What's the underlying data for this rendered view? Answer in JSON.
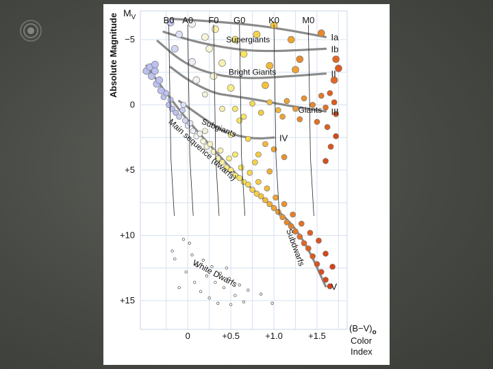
{
  "chart_data": {
    "type": "scatter",
    "title": "",
    "ylabel": "Absolute Magnitude",
    "ylabel_symbol": "M",
    "ylabel_subscript": "V",
    "xlabel_symbol": "(B−V)",
    "xlabel_subscript": "o",
    "xlabel_line1": "Color",
    "xlabel_line2": "Index",
    "xlim": [
      -0.55,
      1.85
    ],
    "ylim": [
      -7.2,
      17.2
    ],
    "y_inverted": true,
    "grid": true,
    "x_ticks": [
      {
        "value": 0,
        "label": "0"
      },
      {
        "value": 0.5,
        "label": "+0.5"
      },
      {
        "value": 1.0,
        "label": "+1.0"
      },
      {
        "value": 1.5,
        "label": "+1.5"
      }
    ],
    "y_ticks": [
      {
        "value": -5,
        "label": "−5"
      },
      {
        "value": 0,
        "label": "0"
      },
      {
        "value": 5,
        "label": "+5"
      },
      {
        "value": 10,
        "label": "+10"
      },
      {
        "value": 15,
        "label": "+15"
      }
    ],
    "spectral_types": [
      {
        "label": "B0",
        "x": -0.22
      },
      {
        "label": "A0",
        "x": 0.0
      },
      {
        "label": "F0",
        "x": 0.3
      },
      {
        "label": "G0",
        "x": 0.6
      },
      {
        "label": "K0",
        "x": 1.0
      },
      {
        "label": "M0",
        "x": 1.4
      }
    ],
    "luminosity_classes": [
      {
        "name": "Ia",
        "label": "Ia",
        "x": [
          -0.2,
          0.3,
          0.8,
          1.2,
          1.6
        ],
        "y": [
          -6.6,
          -6.4,
          -6.1,
          -5.7,
          -5.2
        ]
      },
      {
        "name": "Ib",
        "label": "Ib",
        "x": [
          -0.28,
          0.1,
          0.6,
          1.0,
          1.6
        ],
        "y": [
          -5.6,
          -4.8,
          -4.2,
          -4.1,
          -4.3
        ]
      },
      {
        "name": "II",
        "label": "II",
        "x": [
          -0.35,
          -0.05,
          0.3,
          0.7,
          1.2,
          1.6
        ],
        "y": [
          -4.9,
          -3.2,
          -2.3,
          -2.0,
          -2.2,
          -2.4
        ]
      },
      {
        "name": "III",
        "label": "III",
        "x": [
          -0.2,
          0.0,
          0.3,
          0.5,
          0.8,
          1.2,
          1.6
        ],
        "y": [
          -2.9,
          -1.9,
          -0.9,
          -0.7,
          -0.4,
          0.1,
          0.5
        ]
      },
      {
        "name": "IV",
        "label": "IV",
        "x": [
          -0.1,
          0.2,
          0.4,
          0.6,
          0.8,
          1.0
        ],
        "y": [
          -0.3,
          1.1,
          2.0,
          2.4,
          2.6,
          2.5
        ]
      },
      {
        "name": "V",
        "label": "V",
        "x": [
          -0.48,
          -0.25,
          0.0,
          0.3,
          0.6,
          0.9,
          1.2,
          1.4,
          1.6
        ],
        "y": [
          -3.0,
          -0.9,
          1.2,
          3.4,
          5.6,
          7.3,
          9.0,
          11.0,
          13.9
        ]
      }
    ],
    "region_labels": [
      {
        "text": "Supergiants",
        "x": 0.7,
        "y": -4.8,
        "rotate": 0
      },
      {
        "text": "Bright Giants",
        "x": 0.75,
        "y": -2.3,
        "rotate": 0
      },
      {
        "text": "Giants",
        "x": 1.42,
        "y": 0.6,
        "rotate": 0
      },
      {
        "text": "Subgiants",
        "x": 0.35,
        "y": 1.95,
        "rotate": 22
      },
      {
        "text": "Main sequence (dwarfs)",
        "x": 0.15,
        "y": 3.6,
        "rotate": 42
      },
      {
        "text": "Subdwarfs",
        "x": 1.22,
        "y": 11.0,
        "rotate": 70
      },
      {
        "text": "White Dwarfs",
        "x": 0.3,
        "y": 13.1,
        "rotate": 28
      }
    ],
    "stars": [
      {
        "x": -0.48,
        "y": -2.6,
        "color": "#bcc1f2"
      },
      {
        "x": -0.44,
        "y": -2.9,
        "color": "#bcc1f2"
      },
      {
        "x": -0.42,
        "y": -2.2,
        "color": "#bcc1f2"
      },
      {
        "x": -0.38,
        "y": -2.6,
        "color": "#bcc1f2"
      },
      {
        "x": -0.36,
        "y": -1.6,
        "color": "#bcc1f2"
      },
      {
        "x": -0.33,
        "y": -1.9,
        "color": "#bcc1f2"
      },
      {
        "x": -0.31,
        "y": -1.1,
        "color": "#bcc1f2"
      },
      {
        "x": -0.28,
        "y": -0.6,
        "color": "#bcc1f2"
      },
      {
        "x": -0.25,
        "y": -0.9,
        "color": "#bcc1f2"
      },
      {
        "x": -0.22,
        "y": 0.0,
        "color": "#bcc1f2"
      },
      {
        "x": -0.2,
        "y": -0.4,
        "color": "#bcc1f2"
      },
      {
        "x": -0.18,
        "y": 0.3,
        "color": "#bcc1f2"
      },
      {
        "x": -0.14,
        "y": 0.6,
        "color": "#bcc1f2"
      },
      {
        "x": -0.1,
        "y": 0.9,
        "color": "#c8ccf2"
      },
      {
        "x": -0.06,
        "y": 0.4,
        "color": "#c8ccf2"
      },
      {
        "x": -0.03,
        "y": 1.2,
        "color": "#d2d6f5"
      },
      {
        "x": 0.0,
        "y": 1.6,
        "color": "#e2e4f8"
      },
      {
        "x": 0.03,
        "y": 1.4,
        "color": "#e2e4f8"
      },
      {
        "x": 0.06,
        "y": 2.0,
        "color": "#eceef8"
      },
      {
        "x": 0.1,
        "y": 2.4,
        "color": "#f2f2ee"
      },
      {
        "x": 0.14,
        "y": 2.2,
        "color": "#f2f2ee"
      },
      {
        "x": 0.18,
        "y": 2.8,
        "color": "#f7f5d8"
      },
      {
        "x": 0.22,
        "y": 3.2,
        "color": "#f7f5d8"
      },
      {
        "x": 0.26,
        "y": 3.0,
        "color": "#f8f3c4"
      },
      {
        "x": 0.3,
        "y": 3.6,
        "color": "#f8f3c4"
      },
      {
        "x": 0.35,
        "y": 4.1,
        "color": "#f8f0b0"
      },
      {
        "x": 0.4,
        "y": 4.4,
        "color": "#f8ef9c"
      },
      {
        "x": 0.45,
        "y": 4.8,
        "color": "#f8ec8a"
      },
      {
        "x": 0.5,
        "y": 5.0,
        "color": "#f8ea7c"
      },
      {
        "x": 0.55,
        "y": 5.4,
        "color": "#f8e86e"
      },
      {
        "x": 0.6,
        "y": 5.6,
        "color": "#f8e460"
      },
      {
        "x": 0.65,
        "y": 5.9,
        "color": "#f8e060"
      },
      {
        "x": 0.7,
        "y": 6.1,
        "color": "#f6d850"
      },
      {
        "x": 0.75,
        "y": 6.5,
        "color": "#f6d24a"
      },
      {
        "x": 0.8,
        "y": 6.8,
        "color": "#f6cc44"
      },
      {
        "x": 0.85,
        "y": 7.0,
        "color": "#f4c23e"
      },
      {
        "x": 0.9,
        "y": 7.3,
        "color": "#f2b83a"
      },
      {
        "x": 0.95,
        "y": 7.6,
        "color": "#f0ae36"
      },
      {
        "x": 1.0,
        "y": 7.9,
        "color": "#eea232"
      },
      {
        "x": 1.05,
        "y": 8.2,
        "color": "#ec9a30"
      },
      {
        "x": 1.1,
        "y": 8.6,
        "color": "#ea922e"
      },
      {
        "x": 1.15,
        "y": 9.0,
        "color": "#e8882c"
      },
      {
        "x": 1.2,
        "y": 9.3,
        "color": "#e6802a"
      },
      {
        "x": 1.25,
        "y": 9.7,
        "color": "#e47828"
      },
      {
        "x": 1.3,
        "y": 10.1,
        "color": "#e27026"
      },
      {
        "x": 1.35,
        "y": 10.6,
        "color": "#e06824"
      },
      {
        "x": 1.4,
        "y": 11.0,
        "color": "#de6022"
      },
      {
        "x": 1.45,
        "y": 11.6,
        "color": "#dc5a20"
      },
      {
        "x": 1.5,
        "y": 12.2,
        "color": "#da541e"
      },
      {
        "x": 1.55,
        "y": 12.8,
        "color": "#d84e1c"
      },
      {
        "x": 1.6,
        "y": 13.4,
        "color": "#d6481a"
      },
      {
        "x": 1.65,
        "y": 13.9,
        "color": "#d44218"
      },
      {
        "x": 0.2,
        "y": 2.0,
        "color": "#f5f2dc"
      },
      {
        "x": 0.38,
        "y": 3.5,
        "color": "#f8f0b0"
      },
      {
        "x": 0.48,
        "y": 4.1,
        "color": "#f8ec8a"
      },
      {
        "x": 0.62,
        "y": 4.8,
        "color": "#f8e460"
      },
      {
        "x": 0.72,
        "y": 5.2,
        "color": "#f6d850"
      },
      {
        "x": 0.82,
        "y": 5.9,
        "color": "#f6cc44"
      },
      {
        "x": 0.92,
        "y": 6.4,
        "color": "#f2b83a"
      },
      {
        "x": 1.02,
        "y": 7.1,
        "color": "#eea232"
      },
      {
        "x": 1.12,
        "y": 7.6,
        "color": "#ea922e"
      },
      {
        "x": 1.22,
        "y": 8.4,
        "color": "#e6802a"
      },
      {
        "x": 1.32,
        "y": 9.1,
        "color": "#e27026"
      },
      {
        "x": 1.42,
        "y": 9.8,
        "color": "#de6022"
      },
      {
        "x": 1.52,
        "y": 10.4,
        "color": "#da541e"
      },
      {
        "x": 1.6,
        "y": 11.4,
        "color": "#d6481a"
      },
      {
        "x": 1.68,
        "y": 12.4,
        "color": "#d44218"
      },
      {
        "x": 0.55,
        "y": 3.8,
        "color": "#f8e86e"
      },
      {
        "x": 0.78,
        "y": 4.4,
        "color": "#f6d24a"
      },
      {
        "x": 0.95,
        "y": 5.1,
        "color": "#f0ae36"
      },
      {
        "x": -0.2,
        "y": -6.3,
        "color": "#c8ccf2"
      },
      {
        "x": -0.1,
        "y": -5.4,
        "color": "#dde0f6"
      },
      {
        "x": 0.05,
        "y": -6.2,
        "color": "#f2f2ee"
      },
      {
        "x": 0.2,
        "y": -5.2,
        "color": "#f7f5d8"
      },
      {
        "x": 0.32,
        "y": -5.8,
        "color": "#f8f0b0"
      },
      {
        "x": 0.55,
        "y": -5.0,
        "color": "#f8e86e"
      },
      {
        "x": 0.8,
        "y": -5.4,
        "color": "#f6d24a"
      },
      {
        "x": 1.0,
        "y": -6.1,
        "color": "#f4c23e"
      },
      {
        "x": 1.2,
        "y": -5.0,
        "color": "#eea232"
      },
      {
        "x": 1.55,
        "y": -5.5,
        "color": "#e8882c"
      },
      {
        "x": -0.15,
        "y": -4.3,
        "color": "#d2d6f5"
      },
      {
        "x": 0.05,
        "y": -3.3,
        "color": "#eceef8"
      },
      {
        "x": 0.25,
        "y": -4.3,
        "color": "#f7f5d8"
      },
      {
        "x": 0.4,
        "y": -3.2,
        "color": "#f8f0b0"
      },
      {
        "x": 0.65,
        "y": -3.9,
        "color": "#f8e460"
      },
      {
        "x": 0.95,
        "y": -3.0,
        "color": "#f2b83a"
      },
      {
        "x": 1.3,
        "y": -3.5,
        "color": "#e8882c"
      },
      {
        "x": 1.72,
        "y": -3.5,
        "color": "#e06824"
      },
      {
        "x": 1.75,
        "y": -2.8,
        "color": "#de5a20"
      },
      {
        "x": 1.7,
        "y": -1.9,
        "color": "#e06824"
      },
      {
        "x": 0.1,
        "y": -1.9,
        "color": "#f2f2ee"
      },
      {
        "x": 0.3,
        "y": -2.2,
        "color": "#f7f5d8"
      },
      {
        "x": 0.5,
        "y": -1.3,
        "color": "#f8ec8a"
      },
      {
        "x": 0.9,
        "y": -1.5,
        "color": "#f4c23e"
      },
      {
        "x": 1.25,
        "y": -2.7,
        "color": "#eea232"
      },
      {
        "x": 0.2,
        "y": -0.8,
        "color": "#f5f2dc"
      },
      {
        "x": 0.55,
        "y": 0.3,
        "color": "#f8e86e"
      },
      {
        "x": 0.65,
        "y": 0.9,
        "color": "#f8e460"
      },
      {
        "x": 0.75,
        "y": -0.1,
        "color": "#f6d850"
      },
      {
        "x": 0.85,
        "y": 0.6,
        "color": "#f6cc44"
      },
      {
        "x": 0.95,
        "y": -0.2,
        "color": "#f4c23e"
      },
      {
        "x": 1.05,
        "y": 0.4,
        "color": "#f2b83a"
      },
      {
        "x": 1.15,
        "y": -0.3,
        "color": "#eea232"
      },
      {
        "x": 1.25,
        "y": 0.3,
        "color": "#ec9a30"
      },
      {
        "x": 1.35,
        "y": -0.5,
        "color": "#ea922e"
      },
      {
        "x": 1.45,
        "y": 0.0,
        "color": "#e8882c"
      },
      {
        "x": 1.55,
        "y": -0.7,
        "color": "#e47828"
      },
      {
        "x": 1.6,
        "y": 0.2,
        "color": "#e27026"
      },
      {
        "x": 1.65,
        "y": -0.9,
        "color": "#de6022"
      },
      {
        "x": 1.7,
        "y": -0.2,
        "color": "#dc5a20"
      },
      {
        "x": 1.72,
        "y": 0.7,
        "color": "#d84e1c"
      },
      {
        "x": 1.1,
        "y": 0.9,
        "color": "#eea232"
      },
      {
        "x": 1.3,
        "y": 1.1,
        "color": "#e8882c"
      },
      {
        "x": 1.5,
        "y": 1.3,
        "color": "#e27026"
      },
      {
        "x": 1.62,
        "y": 1.7,
        "color": "#de6022"
      },
      {
        "x": 1.66,
        "y": 3.2,
        "color": "#da541e"
      },
      {
        "x": 1.6,
        "y": 4.3,
        "color": "#d84e1c"
      },
      {
        "x": 1.72,
        "y": 2.4,
        "color": "#d6481a"
      },
      {
        "x": 0.4,
        "y": 0.3,
        "color": "#f8f0b0"
      },
      {
        "x": 0.6,
        "y": 1.2,
        "color": "#f8e460"
      },
      {
        "x": 0.7,
        "y": 2.6,
        "color": "#f6d850"
      },
      {
        "x": 0.9,
        "y": 3.0,
        "color": "#f2b83a"
      },
      {
        "x": 1.0,
        "y": 3.4,
        "color": "#eea232"
      },
      {
        "x": 1.12,
        "y": 4.0,
        "color": "#ea922e"
      },
      {
        "x": 0.82,
        "y": 3.8,
        "color": "#f6cc44"
      },
      {
        "x": 0.5,
        "y": 2.3,
        "color": "#f8ec8a"
      },
      {
        "x": -0.38,
        "y": -3.1,
        "color": "#bcc1f2"
      },
      {
        "x": -0.05,
        "y": 0.0,
        "color": "#dde0f6"
      },
      {
        "x": -0.1,
        "y": 14.0,
        "color": "#ffffff"
      },
      {
        "x": -0.02,
        "y": 12.8,
        "color": "#ffffff"
      },
      {
        "x": -0.05,
        "y": 10.3,
        "color": "#ffffff"
      },
      {
        "x": -0.18,
        "y": 11.2,
        "color": "#ffffff"
      },
      {
        "x": -0.15,
        "y": 11.8,
        "color": "#ffffff"
      },
      {
        "x": 0.05,
        "y": 11.5,
        "color": "#ffffff"
      },
      {
        "x": 0.1,
        "y": 12.3,
        "color": "#ffffff"
      },
      {
        "x": 0.18,
        "y": 11.9,
        "color": "#ffffff"
      },
      {
        "x": 0.22,
        "y": 13.1,
        "color": "#ffffff"
      },
      {
        "x": 0.28,
        "y": 12.4,
        "color": "#ffffff"
      },
      {
        "x": 0.32,
        "y": 13.6,
        "color": "#ffffff"
      },
      {
        "x": 0.38,
        "y": 12.9,
        "color": "#ffffff"
      },
      {
        "x": 0.42,
        "y": 14.0,
        "color": "#ffffff"
      },
      {
        "x": 0.48,
        "y": 13.3,
        "color": "#ffffff"
      },
      {
        "x": 0.55,
        "y": 14.6,
        "color": "#ffffff"
      },
      {
        "x": 0.6,
        "y": 13.8,
        "color": "#ffffff"
      },
      {
        "x": 0.7,
        "y": 14.2,
        "color": "#ffffff"
      },
      {
        "x": 0.85,
        "y": 14.5,
        "color": "#ffffff"
      },
      {
        "x": 0.15,
        "y": 14.3,
        "color": "#ffffff"
      },
      {
        "x": 0.25,
        "y": 14.8,
        "color": "#ffffff"
      },
      {
        "x": 0.08,
        "y": 13.6,
        "color": "#ffffff"
      },
      {
        "x": 0.35,
        "y": 15.2,
        "color": "#ffffff"
      },
      {
        "x": 0.5,
        "y": 15.3,
        "color": "#ffffff"
      },
      {
        "x": 0.65,
        "y": 15.1,
        "color": "#ffffff"
      },
      {
        "x": 0.98,
        "y": 15.2,
        "color": "#ffffff"
      },
      {
        "x": 0.45,
        "y": 12.5,
        "color": "#ffffff"
      },
      {
        "x": 0.02,
        "y": 10.6,
        "color": "#ffffff"
      }
    ]
  }
}
